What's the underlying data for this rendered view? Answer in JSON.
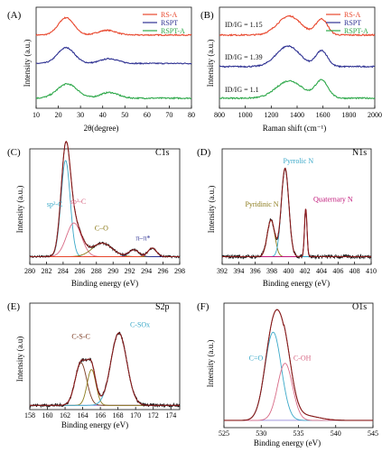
{
  "colors": {
    "red": "#e8462c",
    "blue": "#2e3192",
    "green": "#2ea84a",
    "black": "#111111",
    "cyan": "#3aa8c8",
    "olive": "#8b7a1a",
    "magenta": "#c0187a",
    "pink": "#d86a86",
    "brown": "#7a3a20",
    "envelope": "#8b1a1a",
    "baseline": "#6a5acd"
  },
  "chart_data": [
    {
      "id": "A",
      "type": "line",
      "panel_label": "(A)",
      "xlabel": "2θ(degree)",
      "ylabel": "Intensity (a.u.)",
      "xlim": [
        10,
        80
      ],
      "xticks": [
        10,
        20,
        30,
        40,
        50,
        60,
        70,
        80
      ],
      "legend": {
        "placement": "top-right",
        "entries": [
          "RS-A",
          "RSPT",
          "RSPT-A"
        ]
      },
      "series": [
        {
          "name": "RS-A",
          "color": "red",
          "offset": 2.0,
          "peaks": [
            [
              23.5,
              0.55,
              3.5
            ],
            [
              42,
              0.15,
              4
            ]
          ],
          "noise": 0.035
        },
        {
          "name": "RSPT",
          "color": "blue",
          "offset": 1.1,
          "peaks": [
            [
              23.5,
              0.5,
              3.8
            ],
            [
              43,
              0.15,
              4
            ]
          ],
          "noise": 0.035
        },
        {
          "name": "RSPT-A",
          "color": "green",
          "offset": 0.0,
          "peaks": [
            [
              24,
              0.45,
              4.5
            ],
            [
              43,
              0.18,
              4
            ]
          ],
          "noise": 0.04
        }
      ]
    },
    {
      "id": "B",
      "type": "line",
      "panel_label": "(B)",
      "xlabel": "Raman shift (cm⁻¹)",
      "ylabel": "Intensity (a.u.)",
      "xlim": [
        800,
        2000
      ],
      "xticks": [
        800,
        1000,
        1200,
        1400,
        1600,
        1800,
        2000
      ],
      "legend": {
        "placement": "top-right",
        "entries": [
          "RS-A",
          "RSPT",
          "RSPT-A"
        ]
      },
      "series": [
        {
          "name": "RS-A",
          "color": "red",
          "offset": 2.0,
          "annotation": "1.15",
          "peaks": [
            [
              1340,
              0.6,
              90
            ],
            [
              1590,
              0.5,
              45
            ]
          ],
          "noise": 0.04
        },
        {
          "name": "RSPT",
          "color": "blue",
          "offset": 1.0,
          "annotation": "1.39",
          "peaks": [
            [
              1330,
              0.65,
              90
            ],
            [
              1590,
              0.5,
              45
            ]
          ],
          "noise": 0.04
        },
        {
          "name": "RSPT-A",
          "color": "green",
          "offset": 0.0,
          "annotation": "1.1",
          "peaks": [
            [
              1340,
              0.55,
              100
            ],
            [
              1590,
              0.55,
              50
            ]
          ],
          "noise": 0.04
        }
      ]
    },
    {
      "id": "C",
      "type": "line",
      "panel_label": "(C)",
      "title": "C1s",
      "xlabel": "Binding energy (eV)",
      "ylabel": "Intensity (a.u.)",
      "xlim": [
        280,
        298
      ],
      "xticks": [
        280,
        282,
        284,
        286,
        288,
        290,
        292,
        294,
        296,
        298
      ],
      "components": [
        {
          "name": "sp²-C",
          "center": 284.3,
          "height": 1.0,
          "width": 0.55,
          "color": "cyan"
        },
        {
          "name": "sp³-C",
          "center": 285.3,
          "height": 0.35,
          "width": 0.9,
          "color": "pink"
        },
        {
          "name": "C–O",
          "center": 288.7,
          "height": 0.14,
          "width": 1.2,
          "color": "olive"
        },
        {
          "name": "π–π*",
          "center": 292.5,
          "height": 0.07,
          "width": 0.6,
          "color": "blue"
        },
        {
          "name": "",
          "center": 294.7,
          "height": 0.09,
          "width": 0.5,
          "color": "red"
        }
      ],
      "labels": [
        "sp²-C",
        "sp³-C",
        "C–O",
        "π–π*"
      ]
    },
    {
      "id": "D",
      "type": "line",
      "panel_label": "(D)",
      "title": "N1s",
      "xlabel": "Binding energy (eV)",
      "ylabel": "Intensity (a.u.)",
      "xlim": [
        392,
        410
      ],
      "xticks": [
        392,
        394,
        396,
        398,
        400,
        402,
        404,
        406,
        408,
        410
      ],
      "components": [
        {
          "name": "Pyridinic N",
          "center": 397.9,
          "height": 0.38,
          "width": 0.45,
          "color": "olive"
        },
        {
          "name": "Pyrrolic N",
          "center": 399.6,
          "height": 0.92,
          "width": 0.45,
          "color": "cyan"
        },
        {
          "name": "Quaternary N",
          "center": 402.1,
          "height": 0.5,
          "width": 0.15,
          "color": "magenta"
        }
      ],
      "labels": [
        "Pyridinic N",
        "Pyrrolic N",
        "Quaternary N"
      ]
    },
    {
      "id": "E",
      "type": "line",
      "panel_label": "(E)",
      "title": "S2p",
      "xlabel": "Binding energy (eV)",
      "ylabel": "Intensity (a.u)",
      "xlim": [
        158,
        175
      ],
      "xticks": [
        158,
        160,
        162,
        164,
        166,
        168,
        170,
        172,
        174
      ],
      "components": [
        {
          "name": "C-S-C",
          "center": 163.8,
          "height": 0.5,
          "width": 0.65,
          "color": "brown"
        },
        {
          "name": "",
          "center": 165.0,
          "height": 0.42,
          "width": 0.5,
          "color": "olive"
        },
        {
          "name": "C-SOx",
          "center": 168.1,
          "height": 0.85,
          "width": 0.9,
          "color": "cyan"
        }
      ],
      "labels": [
        "C-S-C",
        "C-SOx"
      ]
    },
    {
      "id": "F",
      "type": "line",
      "panel_label": "(F)",
      "title": "O1s",
      "xlabel": "Binding energy (eV)",
      "ylabel": "Intensity (a.u.)",
      "xlim": [
        525,
        545
      ],
      "xticks": [
        525,
        530,
        535,
        540,
        545
      ],
      "components": [
        {
          "name": "C=O",
          "center": 531.6,
          "height": 0.85,
          "width": 1.1,
          "color": "cyan"
        },
        {
          "name": "C-OH",
          "center": 533.2,
          "height": 0.55,
          "width": 1.0,
          "color": "pink"
        }
      ],
      "labels": [
        "C=O",
        "C-OH"
      ]
    }
  ],
  "ramanRatioLabel": "ID/IG = "
}
